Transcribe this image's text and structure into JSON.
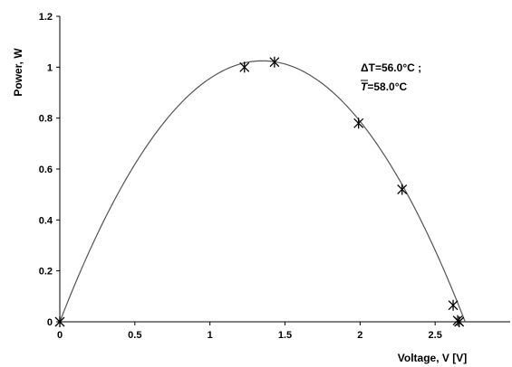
{
  "chart_data": {
    "type": "scatter",
    "xlabel": "Voltage, V [V]",
    "ylabel": "Power, W",
    "xlim": [
      0,
      3
    ],
    "ylim": [
      0,
      1.2
    ],
    "x_ticks": [
      0,
      0.5,
      1,
      1.5,
      2,
      2.5
    ],
    "x_tick_labels": [
      "0",
      "0.5",
      "1",
      "1.5",
      "2",
      "2.5"
    ],
    "y_ticks": [
      0,
      0.2,
      0.4,
      0.6,
      0.8,
      1,
      1.2
    ],
    "y_tick_labels": [
      "0",
      "0.2",
      "0.4",
      "0.6",
      "0.8",
      "1",
      "1.2"
    ],
    "grid": false,
    "legend": "none",
    "annotation": {
      "line1": "ΔT=56.0°C ;",
      "line2_symbol": "T",
      "line2_rest": "=58.0°C"
    },
    "series": [
      {
        "marker": "asterisk",
        "x": [
          0,
          1.23,
          1.43,
          1.99,
          2.28,
          2.62,
          2.65,
          2.66
        ],
        "y": [
          0,
          1.0,
          1.02,
          0.78,
          0.52,
          0.065,
          0.005,
          0.0
        ]
      }
    ],
    "fit_curve": {
      "type": "quadratic",
      "peak_x": 1.35,
      "peak_y": 1.025,
      "zeros": [
        0,
        2.7
      ]
    }
  }
}
